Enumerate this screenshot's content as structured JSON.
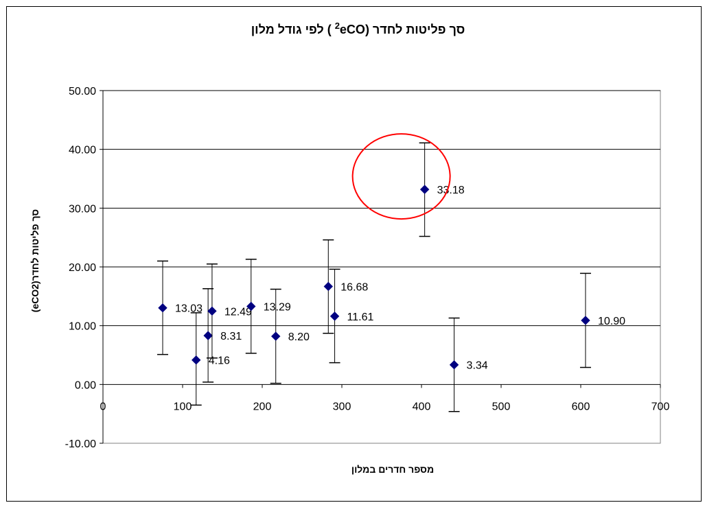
{
  "chart_data": {
    "type": "scatter",
    "title": "סך פליטות לחדר (eCO2 )  לפי גודל מלון",
    "title_parts": {
      "before": "סך פליטות לחדר (",
      "co": "eCO",
      "sub": "2",
      "after": " )  לפי גודל מלון"
    },
    "xlabel": "מספר חדרים במלון",
    "ylabel": "סך פליטות לחדר(eCO2)",
    "xlim": [
      0,
      700
    ],
    "ylim": [
      -10,
      50
    ],
    "x_ticks": [
      0,
      100,
      200,
      300,
      400,
      500,
      600,
      700
    ],
    "y_ticks": [
      "-10.00",
      "0.00",
      "10.00",
      "20.00",
      "30.00",
      "40.00",
      "50.00"
    ],
    "grid": "horizontal",
    "marker_color": "#000080",
    "highlight_color": "#ff0000",
    "points": [
      {
        "x": 75,
        "y": 13.03,
        "err_low": 5.1,
        "err_high": 21.0,
        "label": "13.03"
      },
      {
        "x": 117,
        "y": 4.16,
        "err_low": -3.5,
        "err_high": 12.2,
        "label": "4.16"
      },
      {
        "x": 132,
        "y": 8.31,
        "err_low": 0.4,
        "err_high": 16.3,
        "label": "8.31"
      },
      {
        "x": 137,
        "y": 12.49,
        "err_low": 4.5,
        "err_high": 20.5,
        "label": "12.49"
      },
      {
        "x": 186,
        "y": 13.29,
        "err_low": 5.3,
        "err_high": 21.3,
        "label": "13.29"
      },
      {
        "x": 217,
        "y": 8.2,
        "err_low": 0.2,
        "err_high": 16.2,
        "label": "8.20"
      },
      {
        "x": 283,
        "y": 16.68,
        "err_low": 8.7,
        "err_high": 24.6,
        "label": "16.68"
      },
      {
        "x": 291,
        "y": 11.61,
        "err_low": 3.7,
        "err_high": 19.6,
        "label": "11.61"
      },
      {
        "x": 404,
        "y": 33.18,
        "err_low": 25.2,
        "err_high": 41.1,
        "label": "33.18",
        "highlight": true
      },
      {
        "x": 441,
        "y": 3.34,
        "err_low": -4.6,
        "err_high": 11.3,
        "label": "3.34"
      },
      {
        "x": 606,
        "y": 10.9,
        "err_low": 2.9,
        "err_high": 18.9,
        "label": "10.90"
      }
    ]
  }
}
